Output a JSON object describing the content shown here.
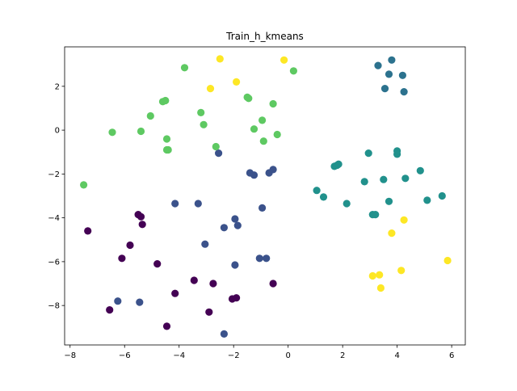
{
  "chart_data": {
    "type": "scatter",
    "title": "Train_h_kmeans",
    "xlabel": "",
    "ylabel": "",
    "xlim": [
      -8.2,
      6.5
    ],
    "ylim": [
      -9.8,
      3.8
    ],
    "xticks": [
      -8,
      -6,
      -4,
      -2,
      0,
      2,
      4,
      6
    ],
    "yticks": [
      -8,
      -6,
      -4,
      -2,
      0,
      2
    ],
    "grid": false,
    "legend": false,
    "colors": {
      "cluster_0": "#440154",
      "cluster_1": "#3b528b",
      "cluster_2": "#21918c",
      "cluster_3": "#5ec962",
      "cluster_4": "#2c728e",
      "cluster_5": "#fde725"
    },
    "series": [
      {
        "color": "#440154",
        "points": [
          [
            -7.35,
            -4.6
          ],
          [
            -5.5,
            -3.85
          ],
          [
            -5.4,
            -3.95
          ],
          [
            -5.35,
            -4.3
          ],
          [
            -5.8,
            -5.25
          ],
          [
            -6.1,
            -5.85
          ],
          [
            -4.8,
            -6.1
          ],
          [
            -6.55,
            -8.2
          ],
          [
            -4.15,
            -7.45
          ],
          [
            -4.45,
            -8.95
          ],
          [
            -3.45,
            -6.85
          ],
          [
            -2.75,
            -7.0
          ],
          [
            -2.9,
            -8.3
          ],
          [
            -2.05,
            -7.7
          ],
          [
            -1.9,
            -7.65
          ],
          [
            -0.55,
            -7.0
          ]
        ]
      },
      {
        "color": "#3b528b",
        "points": [
          [
            -2.55,
            -1.05
          ],
          [
            -1.4,
            -1.95
          ],
          [
            -1.25,
            -2.05
          ],
          [
            -0.7,
            -1.95
          ],
          [
            -0.55,
            -1.8
          ],
          [
            -4.15,
            -3.35
          ],
          [
            -3.3,
            -3.35
          ],
          [
            -0.95,
            -3.55
          ],
          [
            -1.95,
            -4.05
          ],
          [
            -1.85,
            -4.35
          ],
          [
            -2.35,
            -4.45
          ],
          [
            -3.05,
            -5.2
          ],
          [
            -1.05,
            -5.85
          ],
          [
            -0.8,
            -5.85
          ],
          [
            -1.95,
            -6.15
          ],
          [
            -6.25,
            -7.8
          ],
          [
            -5.45,
            -7.85
          ],
          [
            -2.35,
            -9.3
          ]
        ]
      },
      {
        "color": "#21918c",
        "points": [
          [
            2.95,
            -1.05
          ],
          [
            4.0,
            -0.95
          ],
          [
            4.0,
            -1.1
          ],
          [
            1.8,
            -1.6
          ],
          [
            1.7,
            -1.65
          ],
          [
            1.85,
            -1.55
          ],
          [
            4.85,
            -1.85
          ],
          [
            3.5,
            -2.25
          ],
          [
            2.8,
            -2.35
          ],
          [
            4.3,
            -2.2
          ],
          [
            1.05,
            -2.75
          ],
          [
            1.3,
            -3.05
          ],
          [
            5.65,
            -3.0
          ],
          [
            5.1,
            -3.2
          ],
          [
            3.7,
            -3.25
          ],
          [
            2.15,
            -3.35
          ],
          [
            3.1,
            -3.85
          ],
          [
            3.2,
            -3.85
          ]
        ]
      },
      {
        "color": "#5ec962",
        "points": [
          [
            -3.8,
            2.85
          ],
          [
            0.2,
            2.7
          ],
          [
            -4.5,
            1.35
          ],
          [
            -4.6,
            1.3
          ],
          [
            -1.45,
            1.45
          ],
          [
            -1.5,
            1.5
          ],
          [
            -0.55,
            1.2
          ],
          [
            -3.2,
            0.8
          ],
          [
            -5.05,
            0.65
          ],
          [
            -3.1,
            0.25
          ],
          [
            -0.95,
            0.45
          ],
          [
            -1.25,
            0.05
          ],
          [
            -6.45,
            -0.1
          ],
          [
            -5.4,
            -0.05
          ],
          [
            -0.4,
            -0.2
          ],
          [
            -4.45,
            -0.4
          ],
          [
            -0.9,
            -0.5
          ],
          [
            -2.65,
            -0.75
          ],
          [
            -4.45,
            -0.9
          ],
          [
            -4.4,
            -0.9
          ],
          [
            -7.5,
            -2.5
          ]
        ]
      },
      {
        "color": "#2c728e",
        "points": [
          [
            3.8,
            3.2
          ],
          [
            3.3,
            2.95
          ],
          [
            3.7,
            2.55
          ],
          [
            4.2,
            2.5
          ],
          [
            3.55,
            1.9
          ],
          [
            4.25,
            1.75
          ]
        ]
      },
      {
        "color": "#fde725",
        "points": [
          [
            -2.5,
            3.25
          ],
          [
            -0.15,
            3.2
          ],
          [
            -1.9,
            2.2
          ],
          [
            -2.85,
            1.9
          ],
          [
            4.25,
            -4.1
          ],
          [
            3.8,
            -4.7
          ],
          [
            5.85,
            -5.95
          ],
          [
            4.15,
            -6.4
          ],
          [
            3.1,
            -6.65
          ],
          [
            3.35,
            -6.6
          ],
          [
            3.4,
            -7.2
          ]
        ]
      }
    ]
  }
}
